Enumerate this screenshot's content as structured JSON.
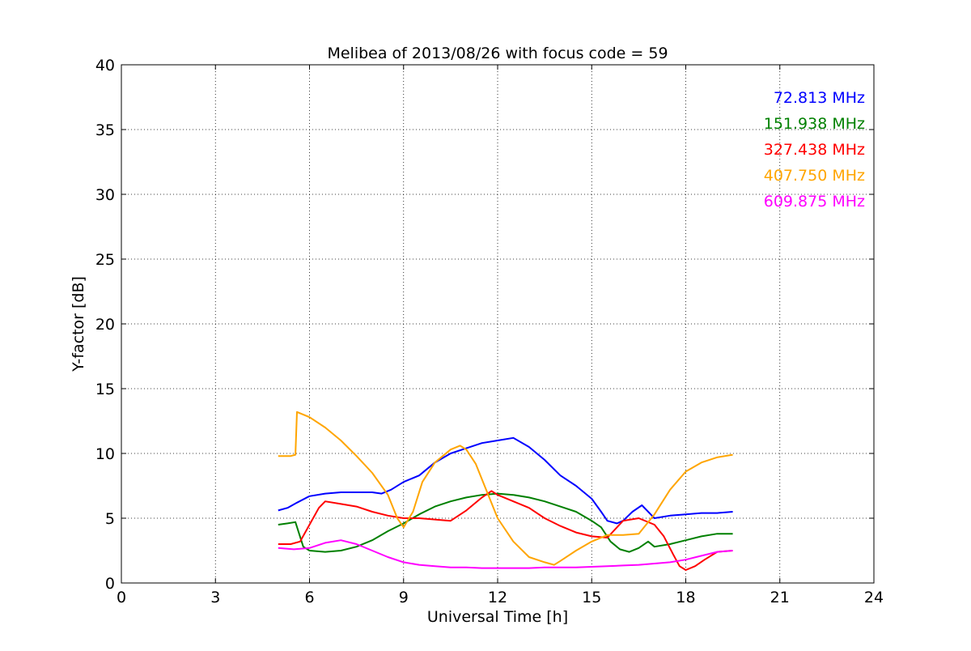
{
  "chart_data": {
    "type": "line",
    "title": "Melibea of 2013/08/26 with focus code = 59",
    "xlabel": "Universal Time [h]",
    "ylabel": "Y-factor [dB]",
    "xlim": [
      0,
      24
    ],
    "ylim": [
      0,
      40
    ],
    "xticks": [
      0,
      3,
      6,
      9,
      12,
      15,
      18,
      21,
      24
    ],
    "yticks": [
      0,
      5,
      10,
      15,
      20,
      25,
      30,
      35,
      40
    ],
    "grid": true,
    "legend_position": "top-right",
    "series": [
      {
        "name": "72.813 MHz",
        "color": "#0000ff",
        "x": [
          5.0,
          5.3,
          5.6,
          6.0,
          6.5,
          7.0,
          7.5,
          8.0,
          8.3,
          8.6,
          9.0,
          9.5,
          10.0,
          10.5,
          11.0,
          11.5,
          12.0,
          12.5,
          13.0,
          13.5,
          14.0,
          14.5,
          15.0,
          15.3,
          15.5,
          15.8,
          16.0,
          16.3,
          16.6,
          17.0,
          17.5,
          18.0,
          18.5,
          19.0,
          19.5
        ],
        "y": [
          5.6,
          5.8,
          6.2,
          6.7,
          6.9,
          7.0,
          7.0,
          7.0,
          6.9,
          7.2,
          7.8,
          8.3,
          9.3,
          10.0,
          10.4,
          10.8,
          11.0,
          11.2,
          10.5,
          9.5,
          8.3,
          7.5,
          6.5,
          5.5,
          4.8,
          4.6,
          4.8,
          5.5,
          6.0,
          5.0,
          5.2,
          5.3,
          5.4,
          5.4,
          5.5
        ]
      },
      {
        "name": "151.938 MHz",
        "color": "#008000",
        "x": [
          5.0,
          5.3,
          5.55,
          5.8,
          6.0,
          6.5,
          7.0,
          7.5,
          8.0,
          8.5,
          9.0,
          9.5,
          10.0,
          10.5,
          11.0,
          11.5,
          12.0,
          12.5,
          13.0,
          13.5,
          14.0,
          14.5,
          15.0,
          15.3,
          15.6,
          15.9,
          16.2,
          16.5,
          16.8,
          17.0,
          17.5,
          18.0,
          18.5,
          19.0,
          19.5
        ],
        "y": [
          4.5,
          4.6,
          4.7,
          2.8,
          2.5,
          2.4,
          2.5,
          2.8,
          3.3,
          4.0,
          4.6,
          5.3,
          5.9,
          6.3,
          6.6,
          6.8,
          6.9,
          6.8,
          6.6,
          6.3,
          5.9,
          5.5,
          4.8,
          4.3,
          3.2,
          2.6,
          2.4,
          2.7,
          3.2,
          2.8,
          3.0,
          3.3,
          3.6,
          3.8,
          3.8
        ]
      },
      {
        "name": "327.438 MHz",
        "color": "#ff0000",
        "x": [
          5.0,
          5.4,
          5.7,
          6.0,
          6.3,
          6.5,
          7.0,
          7.5,
          8.0,
          8.5,
          9.0,
          9.5,
          10.0,
          10.5,
          11.0,
          11.5,
          11.8,
          12.0,
          12.5,
          13.0,
          13.5,
          14.0,
          14.5,
          15.0,
          15.5,
          16.0,
          16.5,
          17.0,
          17.3,
          17.6,
          17.8,
          18.0,
          18.3,
          18.6,
          19.0,
          19.5
        ],
        "y": [
          3.0,
          3.0,
          3.2,
          4.5,
          5.8,
          6.3,
          6.1,
          5.9,
          5.5,
          5.2,
          5.0,
          5.0,
          4.9,
          4.8,
          5.6,
          6.6,
          7.1,
          6.8,
          6.3,
          5.8,
          5.0,
          4.4,
          3.9,
          3.6,
          3.5,
          4.8,
          5.0,
          4.5,
          3.6,
          2.2,
          1.3,
          1.0,
          1.3,
          1.8,
          2.4,
          2.5
        ]
      },
      {
        "name": "407.750 MHz",
        "color": "#ffa500",
        "x": [
          5.0,
          5.4,
          5.55,
          5.6,
          6.0,
          6.5,
          7.0,
          7.5,
          8.0,
          8.5,
          8.8,
          9.0,
          9.3,
          9.6,
          10.0,
          10.5,
          10.8,
          11.0,
          11.3,
          11.6,
          12.0,
          12.5,
          13.0,
          13.5,
          13.8,
          14.0,
          14.5,
          15.0,
          15.5,
          16.0,
          16.5,
          17.0,
          17.5,
          18.0,
          18.5,
          19.0,
          19.5
        ],
        "y": [
          9.8,
          9.8,
          9.9,
          13.2,
          12.8,
          12.0,
          11.0,
          9.8,
          8.5,
          6.8,
          5.0,
          4.3,
          5.5,
          7.8,
          9.3,
          10.3,
          10.6,
          10.3,
          9.2,
          7.4,
          5.0,
          3.2,
          2.0,
          1.6,
          1.4,
          1.7,
          2.5,
          3.2,
          3.7,
          3.7,
          3.8,
          5.3,
          7.2,
          8.6,
          9.3,
          9.7,
          9.9
        ]
      },
      {
        "name": "609.875 MHz",
        "color": "#ff00ff",
        "x": [
          5.0,
          5.5,
          6.0,
          6.5,
          7.0,
          7.5,
          8.0,
          8.5,
          9.0,
          9.5,
          10.0,
          10.5,
          11.0,
          11.5,
          12.0,
          12.5,
          13.0,
          13.5,
          14.0,
          14.5,
          15.0,
          15.5,
          16.0,
          16.5,
          17.0,
          17.5,
          18.0,
          18.5,
          19.0,
          19.5
        ],
        "y": [
          2.7,
          2.6,
          2.7,
          3.1,
          3.3,
          3.0,
          2.5,
          2.0,
          1.6,
          1.4,
          1.3,
          1.2,
          1.2,
          1.15,
          1.15,
          1.15,
          1.15,
          1.2,
          1.2,
          1.2,
          1.25,
          1.3,
          1.35,
          1.4,
          1.5,
          1.6,
          1.8,
          2.1,
          2.4,
          2.5
        ]
      }
    ]
  }
}
